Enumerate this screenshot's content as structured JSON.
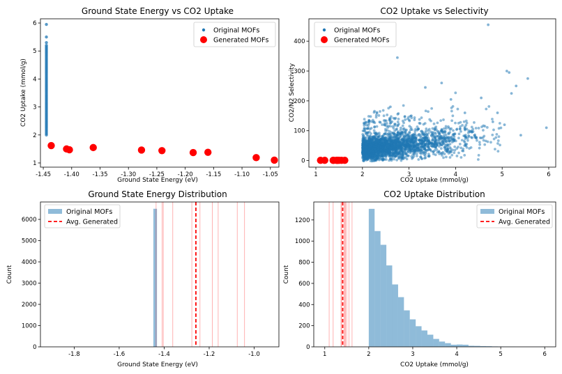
{
  "chart_data": [
    {
      "type": "scatter",
      "title": "Ground State Energy vs CO2 Uptake",
      "xlabel": "Ground State Energy (eV)",
      "ylabel": "CO2 Uptake (mmol/g)",
      "xlim": [
        -1.455,
        -1.035
      ],
      "ylim": [
        0.85,
        6.15
      ],
      "xticks": [
        "-1.45",
        "-1.40",
        "-1.35",
        "-1.30",
        "-1.25",
        "-1.20",
        "-1.15",
        "-1.10",
        "-1.05"
      ],
      "yticks": [
        "1",
        "2",
        "3",
        "4",
        "5",
        "6"
      ],
      "legend_position": "upper-right",
      "series": [
        {
          "name": "Original MOFs",
          "color": "#1f77b4",
          "marker": "small-circle",
          "x_constant": -1.4445,
          "y": [
            2.0,
            2.05,
            2.1,
            2.15,
            2.2,
            2.25,
            2.3,
            2.35,
            2.4,
            2.45,
            2.5,
            2.55,
            2.6,
            2.65,
            2.7,
            2.75,
            2.8,
            2.85,
            2.9,
            2.95,
            3.0,
            3.05,
            3.1,
            3.15,
            3.2,
            3.25,
            3.3,
            3.35,
            3.4,
            3.45,
            3.5,
            3.55,
            3.6,
            3.65,
            3.7,
            3.75,
            3.8,
            3.85,
            3.9,
            3.95,
            4.0,
            4.05,
            4.1,
            4.15,
            4.2,
            4.25,
            4.3,
            4.35,
            4.4,
            4.45,
            4.5,
            4.55,
            4.6,
            4.65,
            4.7,
            4.75,
            4.8,
            4.85,
            4.9,
            4.95,
            5.0,
            5.05,
            5.1,
            5.15,
            5.2,
            5.3,
            5.5,
            5.95
          ]
        },
        {
          "name": "Generated MOFs",
          "color": "#ff0000",
          "marker": "large-circle",
          "x": [
            -1.436,
            -1.409,
            -1.404,
            -1.362,
            -1.277,
            -1.241,
            -1.186,
            -1.16,
            -1.075,
            -1.043
          ],
          "y": [
            1.62,
            1.5,
            1.47,
            1.55,
            1.46,
            1.44,
            1.37,
            1.38,
            1.19,
            1.1
          ]
        }
      ]
    },
    {
      "type": "scatter",
      "title": "CO2 Uptake vs Selectivity",
      "xlabel": "CO2 Uptake (mmol/g)",
      "ylabel": "CO2/N2 Selectivity",
      "xlim": [
        0.85,
        6.15
      ],
      "ylim": [
        -22,
        475
      ],
      "xticks": [
        "1",
        "2",
        "3",
        "4",
        "5",
        "6"
      ],
      "yticks": [
        "0",
        "100",
        "200",
        "300",
        "400"
      ],
      "legend_position": "upper-left",
      "series": [
        {
          "name": "Original MOFs",
          "color": "#1f77b4",
          "marker": "small-circle",
          "alpha": 0.5,
          "x": [
            4.7,
            2.75,
            5.1,
            5.15,
            5.55,
            5.3,
            5.2,
            3.7,
            4.9,
            5.95,
            5.4,
            3.35,
            4.55,
            4.2,
            2.6,
            3.05,
            4.8,
            5.05,
            4.35,
            3.9
          ],
          "y": [
            455,
            345,
            300,
            295,
            275,
            250,
            225,
            260,
            160,
            110,
            85,
            245,
            210,
            160,
            180,
            150,
            130,
            120,
            95,
            205
          ]
        },
        {
          "name": "Generated MOFs",
          "color": "#ff0000",
          "marker": "large-circle",
          "x": [
            1.1,
            1.19,
            1.37,
            1.38,
            1.44,
            1.46,
            1.47,
            1.5,
            1.55,
            1.62
          ],
          "y": [
            1,
            1,
            1,
            1,
            1,
            1,
            1,
            1,
            1,
            1
          ]
        }
      ]
    },
    {
      "type": "bar",
      "title": "Ground State Energy Distribution",
      "xlabel": "Ground State Energy (eV)",
      "ylabel": "Count",
      "xlim": [
        -1.95,
        -0.89
      ],
      "ylim": [
        0,
        6820
      ],
      "xticks": [
        "-1.8",
        "-1.6",
        "-1.4",
        "-1.2",
        "-1.0"
      ],
      "yticks": [
        "0",
        "1000",
        "2000",
        "3000",
        "4000",
        "5000",
        "6000"
      ],
      "legend_position": "upper-left",
      "bins": [
        [
          -1.448,
          -1.444
        ],
        [
          -1.444,
          -1.44
        ],
        [
          -1.44,
          -1.436
        ],
        [
          -1.436,
          -1.432
        ]
      ],
      "counts": [
        6500,
        6500,
        6500,
        6500
      ],
      "series_name": "Original MOFs",
      "series_color": "#1f77b4",
      "generated_lines": [
        -1.436,
        -1.409,
        -1.404,
        -1.362,
        -1.277,
        -1.241,
        -1.186,
        -1.16,
        -1.075,
        -1.043
      ],
      "avg_line": -1.259,
      "avg_name": "Avg. Generated",
      "line_color": "#ff0000"
    },
    {
      "type": "bar",
      "title": "CO2 Uptake Distribution",
      "xlabel": "CO2 Uptake (mmol/g)",
      "ylabel": "Count",
      "xlim": [
        0.75,
        6.25
      ],
      "ylim": [
        0,
        1370
      ],
      "xticks": [
        "1",
        "2",
        "3",
        "4",
        "5",
        "6"
      ],
      "yticks": [
        "0",
        "200",
        "400",
        "600",
        "800",
        "1000",
        "1200"
      ],
      "legend_position": "upper-right",
      "bins": [
        [
          2.0,
          2.133
        ],
        [
          2.133,
          2.267
        ],
        [
          2.267,
          2.4
        ],
        [
          2.4,
          2.533
        ],
        [
          2.533,
          2.667
        ],
        [
          2.667,
          2.8
        ],
        [
          2.8,
          2.933
        ],
        [
          2.933,
          3.067
        ],
        [
          3.067,
          3.2
        ],
        [
          3.2,
          3.333
        ],
        [
          3.333,
          3.467
        ],
        [
          3.467,
          3.6
        ],
        [
          3.6,
          3.733
        ],
        [
          3.733,
          3.867
        ],
        [
          3.867,
          4.0
        ],
        [
          4.0,
          4.133
        ],
        [
          4.133,
          4.267
        ],
        [
          4.267,
          4.4
        ],
        [
          4.4,
          4.533
        ],
        [
          4.533,
          4.667
        ],
        [
          4.667,
          4.8
        ],
        [
          4.8,
          4.933
        ],
        [
          4.933,
          5.067
        ],
        [
          5.067,
          5.2
        ],
        [
          5.2,
          5.333
        ],
        [
          5.333,
          5.467
        ],
        [
          5.467,
          5.6
        ],
        [
          5.6,
          5.733
        ],
        [
          5.733,
          5.867
        ],
        [
          5.867,
          6.0
        ]
      ],
      "counts": [
        1305,
        1095,
        965,
        770,
        590,
        470,
        345,
        260,
        195,
        155,
        115,
        75,
        50,
        35,
        20,
        22,
        20,
        10,
        9,
        7,
        6,
        4,
        3,
        2,
        2,
        1,
        1,
        1,
        1,
        1
      ],
      "series_name": "Original MOFs",
      "series_color": "#1f77b4",
      "generated_lines": [
        1.1,
        1.19,
        1.37,
        1.38,
        1.44,
        1.46,
        1.47,
        1.5,
        1.55,
        1.62
      ],
      "avg_line": 1.408,
      "avg_name": "Avg. Generated",
      "line_color": "#ff0000"
    }
  ]
}
